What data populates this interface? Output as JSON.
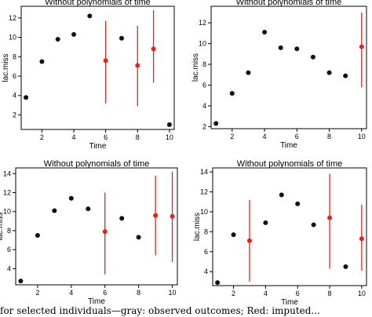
{
  "colors": {
    "observed": "#111111",
    "imputed": "#e8211b",
    "axis": "#000000"
  },
  "chart_data": [
    {
      "type": "scatter",
      "title": "Without polynomials of time",
      "xlabel": "Time",
      "ylabel": "lac.miss",
      "xlim": [
        0.7,
        10.3
      ],
      "ylim": [
        0.5,
        13.2
      ],
      "xticks": [
        2,
        4,
        6,
        8,
        10
      ],
      "yticks": [
        2,
        4,
        6,
        8,
        10,
        12
      ],
      "observed": [
        {
          "x": 1,
          "y": 3.8
        },
        {
          "x": 2,
          "y": 7.5
        },
        {
          "x": 3,
          "y": 9.8
        },
        {
          "x": 4,
          "y": 10.3
        },
        {
          "x": 5,
          "y": 12.2
        },
        {
          "x": 7,
          "y": 9.9
        },
        {
          "x": 10,
          "y": 1.0
        }
      ],
      "imputed": [
        {
          "x": 6,
          "y": 7.6,
          "lo": 3.2,
          "hi": 11.7
        },
        {
          "x": 8,
          "y": 7.1,
          "lo": 2.9,
          "hi": 11.2
        },
        {
          "x": 9,
          "y": 8.8,
          "lo": 5.3,
          "hi": 12.8
        }
      ]
    },
    {
      "type": "scatter",
      "title": "Without polynomials of time",
      "xlabel": "Time",
      "ylabel": "lac.miss",
      "xlim": [
        0.7,
        10.3
      ],
      "ylim": [
        1.8,
        13.6
      ],
      "xticks": [
        2,
        4,
        6,
        8,
        10
      ],
      "yticks": [
        2,
        4,
        6,
        8,
        10,
        12
      ],
      "observed": [
        {
          "x": 1,
          "y": 2.3
        },
        {
          "x": 2,
          "y": 5.2
        },
        {
          "x": 3,
          "y": 7.2
        },
        {
          "x": 4,
          "y": 11.1
        },
        {
          "x": 5,
          "y": 9.6
        },
        {
          "x": 6,
          "y": 9.5
        },
        {
          "x": 7,
          "y": 8.7
        },
        {
          "x": 8,
          "y": 7.2
        },
        {
          "x": 9,
          "y": 6.9
        }
      ],
      "imputed": [
        {
          "x": 10,
          "y": 9.7,
          "lo": 5.8,
          "hi": 13.0
        }
      ]
    },
    {
      "type": "scatter",
      "title": "Without polynomials of time",
      "xlabel": "Time",
      "ylabel": "lac.miss",
      "xlim": [
        0.7,
        10.3
      ],
      "ylim": [
        2.3,
        14.6
      ],
      "xticks": [
        2,
        4,
        6,
        8,
        10
      ],
      "yticks": [
        4,
        6,
        8,
        10,
        12,
        14
      ],
      "observed": [
        {
          "x": 1,
          "y": 2.7
        },
        {
          "x": 2,
          "y": 7.5
        },
        {
          "x": 3,
          "y": 10.1
        },
        {
          "x": 4,
          "y": 11.4
        },
        {
          "x": 5,
          "y": 10.3
        },
        {
          "x": 7,
          "y": 9.3
        },
        {
          "x": 8,
          "y": 7.3
        }
      ],
      "imputed": [
        {
          "x": 6,
          "y": 7.9,
          "lo": 3.4,
          "hi": 12.0
        },
        {
          "x": 9,
          "y": 9.6,
          "lo": 5.4,
          "hi": 13.8
        },
        {
          "x": 10,
          "y": 9.5,
          "lo": 4.7,
          "hi": 14.2
        }
      ]
    },
    {
      "type": "scatter",
      "title": "Without polynomials of time",
      "xlabel": "Time",
      "ylabel": "lac.miss",
      "xlim": [
        0.7,
        10.3
      ],
      "ylim": [
        2.6,
        14.4
      ],
      "xticks": [
        2,
        4,
        6,
        8,
        10
      ],
      "yticks": [
        4,
        6,
        8,
        10,
        12,
        14
      ],
      "observed": [
        {
          "x": 1,
          "y": 2.9
        },
        {
          "x": 2,
          "y": 7.7
        },
        {
          "x": 4,
          "y": 8.9
        },
        {
          "x": 5,
          "y": 11.7
        },
        {
          "x": 6,
          "y": 10.8
        },
        {
          "x": 7,
          "y": 8.7
        },
        {
          "x": 9,
          "y": 4.5
        }
      ],
      "imputed": [
        {
          "x": 3,
          "y": 7.1,
          "lo": 3.0,
          "hi": 11.2
        },
        {
          "x": 8,
          "y": 9.4,
          "lo": 4.3,
          "hi": 13.8
        },
        {
          "x": 10,
          "y": 7.3,
          "lo": 4.1,
          "hi": 10.7
        }
      ]
    }
  ],
  "caption_fragment": "for selected individuals—gray: observed outcomes; Red: imputed..."
}
